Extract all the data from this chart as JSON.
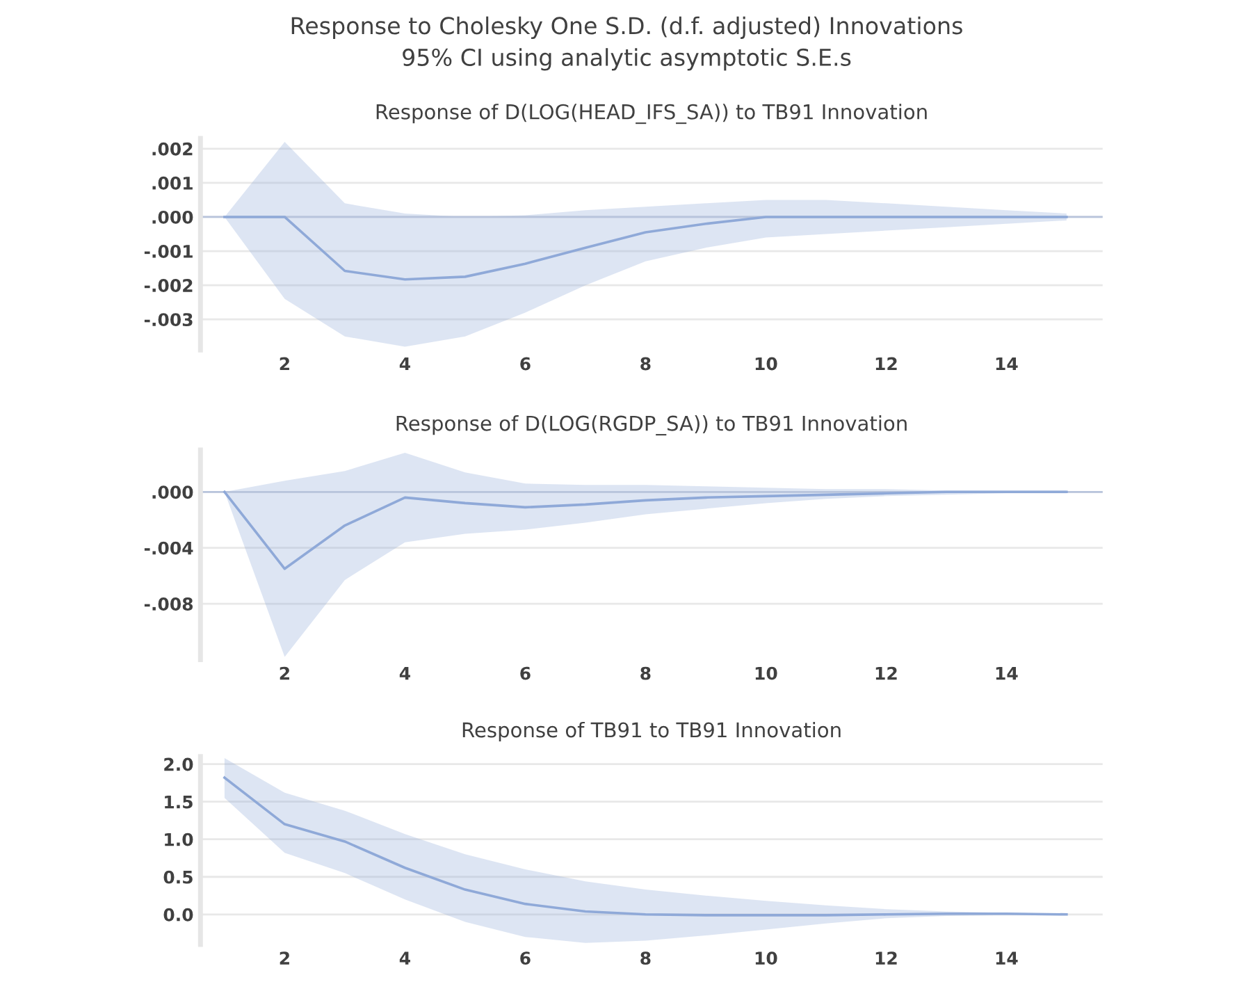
{
  "chart_data": [
    {
      "type": "line",
      "title": "Response of D(LOG(HEAD_IFS_SA)) to TB91 Innovation",
      "annotations": [
        "Response to Cholesky One S.D. (d.f. adjusted) Innovations",
        "95% CI using analytic asymptotic S.E.s"
      ],
      "x": [
        1,
        2,
        3,
        4,
        5,
        6,
        7,
        8,
        9,
        10,
        11,
        12,
        13,
        14,
        15
      ],
      "series": [
        {
          "color": "#8fa9d8",
          "values": [
            0,
            0,
            -0.00158,
            -0.00183,
            -0.00175,
            -0.00137,
            -0.0009,
            -0.00045,
            -0.0002,
            0,
            0,
            0,
            0,
            0,
            0
          ],
          "upper": [
            0,
            0.0022,
            0.0004,
            0.0001,
            0,
            5e-05,
            0.0002,
            0.0003,
            0.0004,
            0.0005,
            0.0005,
            0.0004,
            0.0003,
            0.0002,
            0.0001
          ],
          "lower": [
            0,
            -0.0024,
            -0.0035,
            -0.0038,
            -0.0035,
            -0.0028,
            -0.002,
            -0.0013,
            -0.0009,
            -0.0006,
            -0.0005,
            -0.0004,
            -0.0003,
            -0.0002,
            -0.0001
          ]
        }
      ],
      "xlim": [
        0.6,
        15.6
      ],
      "xticks": [
        2,
        4,
        6,
        8,
        10,
        12,
        14
      ],
      "ylim": [
        -0.0039,
        0.0023
      ],
      "yticks": [
        {
          "value": 0.002,
          "label": ".002"
        },
        {
          "value": 0.001,
          "label": ".001"
        },
        {
          "value": 0,
          "label": ".000"
        },
        {
          "value": -0.001,
          "label": "-.001"
        },
        {
          "value": -0.002,
          "label": "-.002"
        },
        {
          "value": -0.003,
          "label": "-.003"
        }
      ],
      "grid": "y",
      "ref_lines": [
        {
          "axis": "y",
          "value": 0,
          "color": "#b8c4dc"
        }
      ]
    },
    {
      "type": "line",
      "title": "Response of D(LOG(RGDP_SA)) to TB91 Innovation",
      "x": [
        1,
        2,
        3,
        4,
        5,
        6,
        7,
        8,
        9,
        10,
        11,
        12,
        13,
        14,
        15
      ],
      "series": [
        {
          "color": "#8fa9d8",
          "values": [
            0,
            -0.0055,
            -0.0024,
            -0.0004,
            -0.0008,
            -0.0011,
            -0.0009,
            -0.0006,
            -0.0004,
            -0.0003,
            -0.0002,
            -0.0001,
            0,
            0,
            0
          ],
          "upper": [
            0,
            0.0008,
            0.0015,
            0.0028,
            0.0014,
            0.0006,
            0.0005,
            0.0005,
            0.0004,
            0.0003,
            0.0002,
            0.0002,
            0.0001,
            0.0001,
            0.0001
          ],
          "lower": [
            0,
            -0.0118,
            -0.0063,
            -0.0036,
            -0.003,
            -0.0027,
            -0.0022,
            -0.0016,
            -0.0012,
            -0.0008,
            -0.0005,
            -0.0003,
            -0.0002,
            -0.0001,
            -0.0001
          ]
        }
      ],
      "xlim": [
        0.6,
        15.6
      ],
      "xticks": [
        2,
        4,
        6,
        8,
        10,
        12,
        14
      ],
      "ylim": [
        -0.012,
        0.003
      ],
      "yticks": [
        {
          "value": 0,
          "label": ".000"
        },
        {
          "value": -0.004,
          "label": "-.004"
        },
        {
          "value": -0.008,
          "label": "-.008"
        }
      ],
      "grid": "y",
      "ref_lines": [
        {
          "axis": "y",
          "value": 0,
          "color": "#b8c4dc"
        }
      ]
    },
    {
      "type": "line",
      "title": "Response of TB91 to TB91 Innovation",
      "x": [
        1,
        2,
        3,
        4,
        5,
        6,
        7,
        8,
        9,
        10,
        11,
        12,
        13,
        14,
        15
      ],
      "series": [
        {
          "color": "#8fa9d8",
          "values": [
            1.82,
            1.2,
            0.97,
            0.62,
            0.33,
            0.14,
            0.04,
            0,
            -0.01,
            -0.01,
            -0.01,
            0,
            0.01,
            0.01,
            0
          ],
          "upper": [
            2.08,
            1.62,
            1.38,
            1.07,
            0.8,
            0.6,
            0.44,
            0.33,
            0.25,
            0.18,
            0.12,
            0.07,
            0.04,
            0.02,
            0.01
          ],
          "lower": [
            1.55,
            0.82,
            0.55,
            0.2,
            -0.1,
            -0.3,
            -0.38,
            -0.35,
            -0.28,
            -0.2,
            -0.12,
            -0.05,
            -0.02,
            -0.01,
            0
          ]
        }
      ],
      "xlim": [
        0.6,
        15.6
      ],
      "xticks": [
        2,
        4,
        6,
        8,
        10,
        12,
        14
      ],
      "ylim": [
        -0.4,
        2.1
      ],
      "yticks": [
        {
          "value": 2.0,
          "label": "2.0"
        },
        {
          "value": 1.5,
          "label": "1.5"
        },
        {
          "value": 1.0,
          "label": "1.0"
        },
        {
          "value": 0.5,
          "label": "0.5"
        },
        {
          "value": 0.0,
          "label": "0.0"
        }
      ],
      "grid": "y"
    }
  ]
}
